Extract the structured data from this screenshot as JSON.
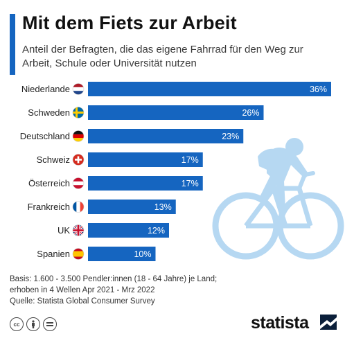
{
  "title": "Mit dem Fiets zur Arbeit",
  "subtitle": "Anteil der Befragten, die das eigene Fahrrad für den Weg zur Arbeit, Schule oder Universität nutzen",
  "chart_data": {
    "type": "bar",
    "orientation": "horizontal",
    "categories": [
      "Niederlande",
      "Schweden",
      "Deutschland",
      "Schweiz",
      "Österreich",
      "Frankreich",
      "UK",
      "Spanien"
    ],
    "values": [
      36,
      26,
      23,
      17,
      17,
      13,
      12,
      10
    ],
    "value_labels": [
      "36%",
      "26%",
      "23%",
      "17%",
      "17%",
      "13%",
      "12%",
      "10%"
    ],
    "flags": [
      "netherlands",
      "sweden",
      "germany",
      "switzerland",
      "austria",
      "france",
      "uk",
      "spain"
    ],
    "xlim": [
      0,
      36
    ],
    "bar_color": "#1565c0",
    "grid": false,
    "legend": "none"
  },
  "footer": {
    "line1": "Basis: 1.600 - 3.500 Pendler:innen (18 - 64 Jahre) je Land;",
    "line2": "erhoben in 4 Wellen Apr 2021 - Mrz 2022",
    "line3": "Quelle: Statista Global Consumer Survey"
  },
  "license_icons": [
    "cc",
    "by",
    "nd"
  ],
  "brand": "statista",
  "colors": {
    "accent": "#1565c0",
    "bar": "#1565c0",
    "illustration": "#b6d8f2"
  }
}
